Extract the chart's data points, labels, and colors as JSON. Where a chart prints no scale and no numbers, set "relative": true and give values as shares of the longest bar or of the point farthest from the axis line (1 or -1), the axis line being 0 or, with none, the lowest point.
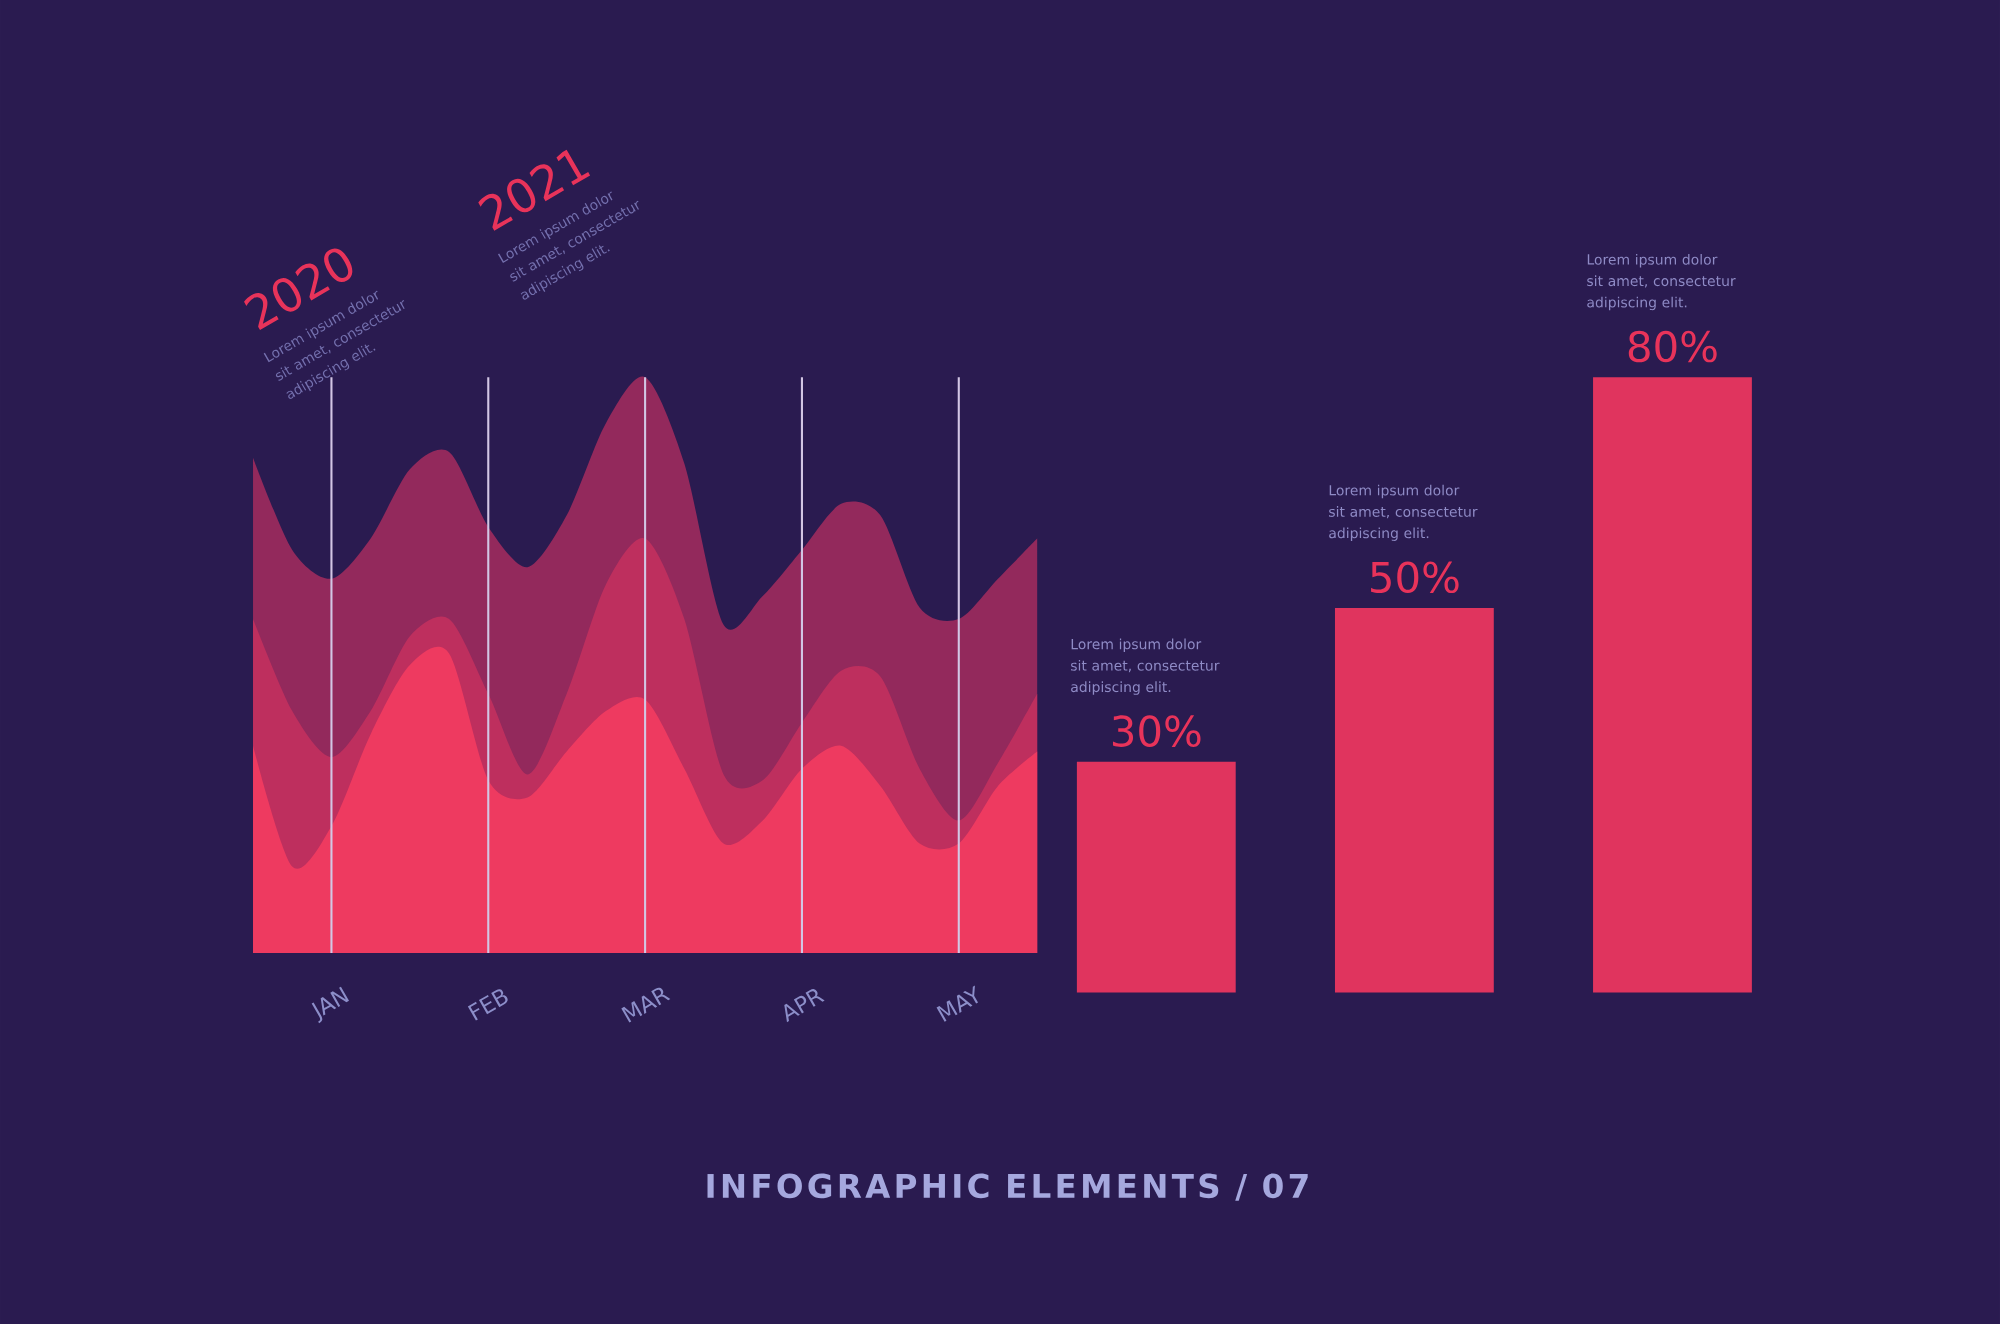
{
  "chart_data": [
    {
      "type": "area",
      "relative": true,
      "categories": [
        null,
        null,
        "JAN",
        null,
        null,
        null,
        "FEB",
        null,
        null,
        null,
        "MAR",
        null,
        null,
        null,
        "APR",
        null,
        null,
        null,
        "MAY",
        null,
        null
      ],
      "grid": "x",
      "annotations": [
        "2020",
        "Lorem ipsum dolor sit amet, consectetur adipiscing elit.",
        "2021",
        "Lorem ipsum dolor sit amet, consectetur adipiscing elit."
      ],
      "series": [
        {
          "color": "#93295c",
          "values": [
            0.86,
            0.7,
            0.65,
            0.72,
            0.84,
            0.87,
            0.74,
            0.67,
            0.76,
            0.92,
            1.0,
            0.85,
            0.57,
            0.62,
            0.7,
            0.78,
            0.76,
            0.6,
            0.58,
            0.65,
            0.72
          ]
        },
        {
          "color": "#be2f5e",
          "values": [
            0.58,
            0.42,
            0.34,
            0.42,
            0.55,
            0.58,
            0.45,
            0.31,
            0.45,
            0.64,
            0.72,
            0.58,
            0.31,
            0.3,
            0.4,
            0.49,
            0.48,
            0.32,
            0.23,
            0.33,
            0.45
          ]
        },
        {
          "color": "#ee3a60",
          "values": [
            0.36,
            0.15,
            0.22,
            0.38,
            0.5,
            0.52,
            0.3,
            0.27,
            0.35,
            0.42,
            0.44,
            0.32,
            0.19,
            0.23,
            0.32,
            0.36,
            0.29,
            0.19,
            0.19,
            0.29,
            0.35
          ]
        }
      ]
    },
    {
      "type": "bar",
      "title": "INFOGRAPHIC ELEMENTS / 07",
      "categories": [
        null,
        null,
        null
      ],
      "values": [
        30,
        50,
        80
      ],
      "value_labels": [
        "30%",
        "50%",
        "80%"
      ],
      "color": "#e0345e",
      "annotations": [
        "Lorem ipsum dolor sit amet, consectetur adipiscing elit.",
        "Lorem ipsum dolor sit amet, consectetur adipiscing elit.",
        "Lorem ipsum dolor sit amet, consectetur adipiscing elit."
      ]
    }
  ]
}
